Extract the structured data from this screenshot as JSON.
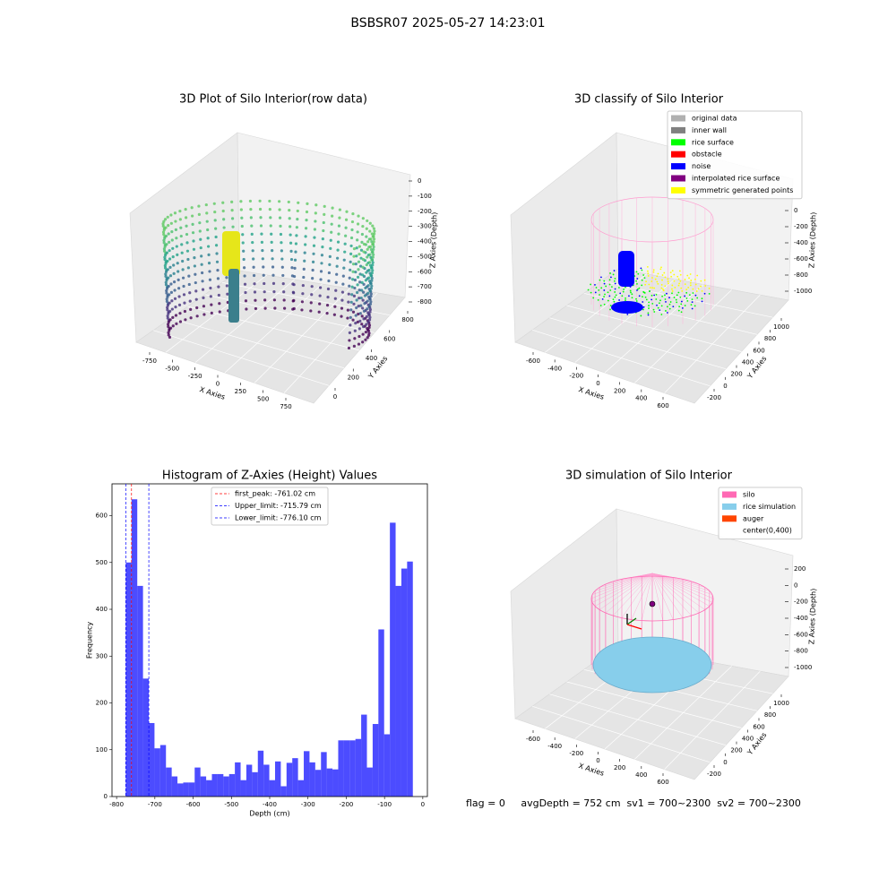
{
  "title": "BSBSR07 2025-05-27 14:23:01",
  "chart_data": [
    {
      "type": "scatter3d",
      "title": "3D Plot of Silo Interior(row data)",
      "x_label": "X Axies",
      "y_label": "Y Axies",
      "z_label": "Z Axies (Depth)",
      "xticks": [
        -750,
        -500,
        -250,
        0,
        250,
        500,
        750
      ],
      "yticks": [
        0,
        200,
        400,
        600,
        800
      ],
      "zticks": [
        0,
        -100,
        -200,
        -300,
        -400,
        -500,
        -600,
        -700,
        -800
      ]
    },
    {
      "type": "scatter3d",
      "title": "3D classify of Silo Interior",
      "x_label": "X Axies",
      "y_label": "Y Axies",
      "z_label": "Z Axies (Depth)",
      "xticks": [
        -600,
        -400,
        -200,
        0,
        200,
        400,
        600
      ],
      "yticks": [
        -200,
        0,
        200,
        400,
        600,
        800,
        1000
      ],
      "zticks": [
        0,
        -200,
        -400,
        -600,
        -800,
        -1000
      ],
      "legend": [
        {
          "name": "original data",
          "color": "#b0b0b0"
        },
        {
          "name": "inner wall",
          "color": "#808080"
        },
        {
          "name": "rice surface",
          "color": "#00ff00"
        },
        {
          "name": "obstacle",
          "color": "#ff0000"
        },
        {
          "name": "noise",
          "color": "#0000ff"
        },
        {
          "name": "interpolated rice surface",
          "color": "#800080"
        },
        {
          "name": "symmetric generated points",
          "color": "#ffff00"
        }
      ]
    },
    {
      "type": "histogram",
      "title": "Histogram of Z-Axies (Height) Values",
      "x_label": "Depth (cm)",
      "y_label": "Frequency",
      "color": "#0000ff",
      "bins": [
        -776,
        -761,
        -746,
        -731,
        -716,
        -701,
        -686,
        -671,
        -656,
        -641,
        -626,
        -611,
        -596,
        -581,
        -566,
        -551,
        -536,
        -521,
        -506,
        -491,
        -476,
        -461,
        -446,
        -431,
        -416,
        -401,
        -386,
        -371,
        -356,
        -341,
        -326,
        -311,
        -296,
        -281,
        -266,
        -251,
        -236,
        -221,
        -206,
        -191,
        -176,
        -161,
        -146,
        -131,
        -116,
        -101,
        -86,
        -71,
        -56,
        -41,
        -26
      ],
      "counts": [
        500,
        635,
        450,
        252,
        157,
        103,
        110,
        62,
        43,
        28,
        30,
        30,
        62,
        43,
        35,
        48,
        48,
        43,
        48,
        73,
        35,
        68,
        52,
        98,
        68,
        35,
        75,
        22,
        72,
        82,
        35,
        97,
        73,
        57,
        95,
        60,
        58,
        120,
        120,
        120,
        123,
        175,
        62,
        155,
        357,
        133,
        585,
        450,
        487,
        502
      ],
      "xlim": [
        -812,
        12
      ],
      "ylim": [
        0,
        668
      ],
      "xticks": [
        -800,
        -700,
        -600,
        -500,
        -400,
        -300,
        -200,
        -100,
        0
      ],
      "yticks": [
        0,
        100,
        200,
        300,
        400,
        500,
        600
      ],
      "vlines": [
        {
          "name": "first_peak: -761.02 cm",
          "value": -761.02,
          "color": "#ff0000"
        },
        {
          "name": "Upper_limit: -715.79 cm",
          "value": -715.79,
          "color": "#0000ff"
        },
        {
          "name": "Lower_limit: -776.10 cm",
          "value": -776.1,
          "color": "#0000ff"
        }
      ]
    },
    {
      "type": "scatter3d",
      "title": "3D simulation of Silo Interior",
      "x_label": "X Axies",
      "y_label": "Y Axies",
      "z_label": "Z Axies (Depth)",
      "xticks": [
        -600,
        -400,
        -200,
        0,
        200,
        400,
        600
      ],
      "yticks": [
        -200,
        0,
        200,
        400,
        600,
        800,
        1000
      ],
      "zticks": [
        200,
        0,
        -200,
        -400,
        -600,
        -800,
        -1000
      ],
      "legend": [
        {
          "name": "silo",
          "color": "#ff69b4"
        },
        {
          "name": "rice simulation",
          "color": "#87ceeb"
        },
        {
          "name": "auger",
          "color": "#ff4500"
        },
        {
          "name": "center(0,400)",
          "color": "#ffffff"
        }
      ]
    }
  ],
  "footer": "flag = 0     avgDepth = 752 cm  sv1 = 700~2300  sv2 = 700~2300"
}
